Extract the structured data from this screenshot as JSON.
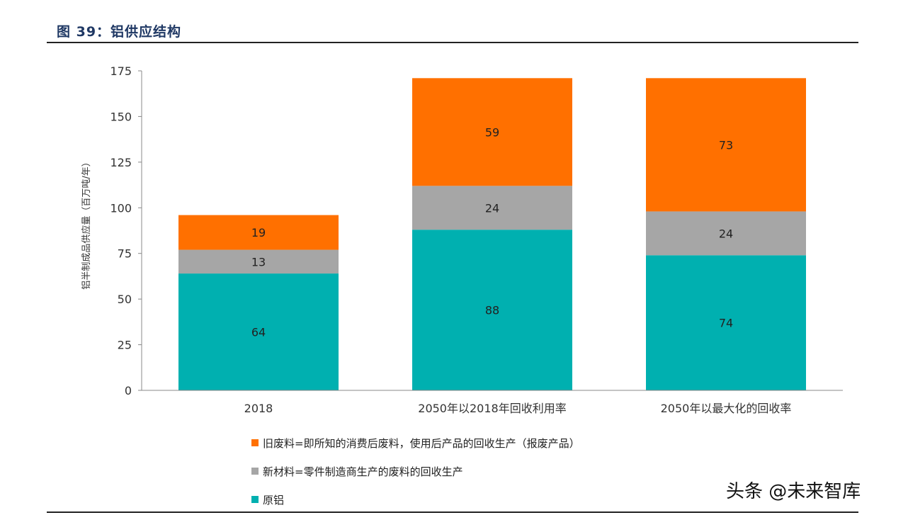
{
  "figure": {
    "title": "图 39：铝供应结构",
    "watermark": "头条 @未来智库"
  },
  "chart_data": {
    "type": "bar",
    "stacked": true,
    "ylabel": "铝半制成品供应量（百万吨/年）",
    "ylim": [
      0,
      175
    ],
    "yticks": [
      0,
      25,
      50,
      75,
      100,
      125,
      150,
      175
    ],
    "grid": false,
    "legend_position": "bottom-left",
    "categories": [
      "2018",
      "2050年以2018年回收利用率",
      "2050年以最大化的回收率"
    ],
    "series": [
      {
        "name": "原铝",
        "color": "#00b0b0",
        "values": [
          64,
          88,
          74
        ]
      },
      {
        "name": "新材料=零件制造商生产的废料的回收生产",
        "color": "#a6a6a6",
        "values": [
          13,
          24,
          24
        ]
      },
      {
        "name": "旧废料=即所知的消费后废料，使用后产品的回收生产（报废产品）",
        "color": "#ff7000",
        "values": [
          19,
          59,
          73
        ]
      }
    ]
  },
  "legend": [
    {
      "label": "旧废料=即所知的消费后废料，使用后产品的回收生产（报废产品）",
      "color": "#ff7000"
    },
    {
      "label": "新材料=零件制造商生产的废料的回收生产",
      "color": "#a6a6a6"
    },
    {
      "label": "原铝",
      "color": "#00b0b0"
    }
  ]
}
